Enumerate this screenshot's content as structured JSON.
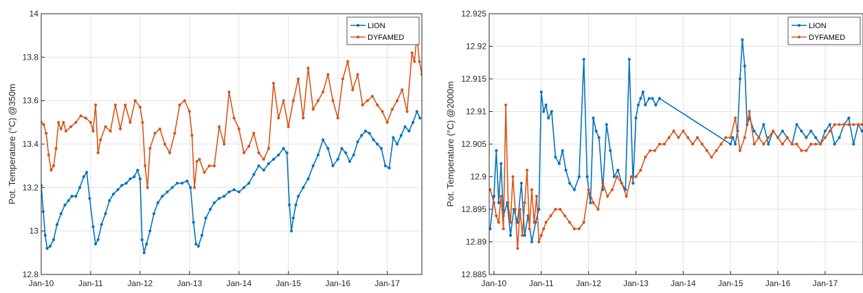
{
  "chart_data": [
    {
      "type": "line",
      "title": "",
      "xlabel": "",
      "ylabel": "Pot. Temperature (°C) @350m",
      "xlim": [
        2010.0,
        2017.7
      ],
      "ylim": [
        12.8,
        14.0
      ],
      "xticks": [
        2010,
        2011,
        2012,
        2013,
        2014,
        2015,
        2016,
        2017
      ],
      "xtick_labels": [
        "Jan-10",
        "Jan-11",
        "Jan-12",
        "Jan-13",
        "Jan-14",
        "Jan-15",
        "Jan-16",
        "Jan-17"
      ],
      "yticks": [
        12.8,
        13.0,
        13.2,
        13.4,
        13.6,
        13.8,
        14.0
      ],
      "ytick_labels": [
        "12.8",
        "13",
        "13.2",
        "13.4",
        "13.6",
        "13.8",
        "14"
      ],
      "grid": true,
      "legend_position": "top-right",
      "series": [
        {
          "name": "LION",
          "color": "#0072BD",
          "x": [
            2010.0,
            2010.04,
            2010.08,
            2010.12,
            2010.18,
            2010.25,
            2010.32,
            2010.4,
            2010.48,
            2010.55,
            2010.62,
            2010.7,
            2010.78,
            2010.86,
            2010.92,
            2010.98,
            2011.05,
            2011.1,
            2011.15,
            2011.22,
            2011.3,
            2011.38,
            2011.46,
            2011.55,
            2011.63,
            2011.72,
            2011.8,
            2011.88,
            2011.95,
            2012.0,
            2012.04,
            2012.08,
            2012.13,
            2012.2,
            2012.28,
            2012.36,
            2012.45,
            2012.55,
            2012.65,
            2012.75,
            2012.85,
            2012.95,
            2013.02,
            2013.08,
            2013.13,
            2013.18,
            2013.25,
            2013.33,
            2013.42,
            2013.5,
            2013.6,
            2013.7,
            2013.8,
            2013.9,
            2014.0,
            2014.1,
            2014.2,
            2014.3,
            2014.4,
            2014.5,
            2014.6,
            2014.7,
            2014.8,
            2014.9,
            2014.97,
            2015.02,
            2015.06,
            2015.1,
            2015.15,
            2015.2,
            2015.3,
            2015.4,
            2015.5,
            2015.6,
            2015.7,
            2015.8,
            2015.9,
            2016.0,
            2016.08,
            2016.16,
            2016.24,
            2016.32,
            2016.4,
            2016.48,
            2016.56,
            2016.64,
            2016.72,
            2016.8,
            2016.88,
            2016.96,
            2017.04,
            2017.12,
            2017.2,
            2017.28,
            2017.36,
            2017.44,
            2017.52,
            2017.6,
            2017.66
          ],
          "y": [
            13.21,
            13.09,
            12.98,
            12.92,
            12.93,
            12.96,
            13.03,
            13.08,
            13.12,
            13.14,
            13.16,
            13.16,
            13.2,
            13.25,
            13.27,
            13.15,
            13.02,
            12.94,
            12.96,
            13.03,
            13.08,
            13.14,
            13.17,
            13.19,
            13.21,
            13.22,
            13.24,
            13.25,
            13.28,
            13.24,
            12.96,
            12.9,
            12.94,
            13.0,
            13.08,
            13.13,
            13.16,
            13.18,
            13.2,
            13.22,
            13.22,
            13.23,
            13.2,
            13.04,
            12.94,
            12.93,
            12.98,
            13.06,
            13.1,
            13.13,
            13.15,
            13.16,
            13.18,
            13.19,
            13.18,
            13.2,
            13.22,
            13.26,
            13.3,
            13.28,
            13.31,
            13.33,
            13.35,
            13.38,
            13.36,
            13.12,
            13.0,
            13.06,
            13.12,
            13.16,
            13.2,
            13.24,
            13.3,
            13.35,
            13.42,
            13.38,
            13.3,
            13.33,
            13.38,
            13.36,
            13.32,
            13.35,
            13.41,
            13.44,
            13.46,
            13.45,
            13.42,
            13.4,
            13.38,
            13.3,
            13.29,
            13.43,
            13.4,
            13.44,
            13.48,
            13.46,
            13.5,
            13.55,
            13.52
          ]
        },
        {
          "name": "DYFAMED",
          "color": "#D95319",
          "x": [
            2010.0,
            2010.05,
            2010.1,
            2010.15,
            2010.2,
            2010.25,
            2010.3,
            2010.35,
            2010.4,
            2010.45,
            2010.5,
            2010.6,
            2010.7,
            2010.8,
            2010.9,
            2011.0,
            2011.05,
            2011.1,
            2011.15,
            2011.2,
            2011.3,
            2011.4,
            2011.5,
            2011.6,
            2011.7,
            2011.8,
            2011.9,
            2012.0,
            2012.05,
            2012.1,
            2012.15,
            2012.2,
            2012.3,
            2012.4,
            2012.5,
            2012.6,
            2012.7,
            2012.8,
            2012.9,
            2013.0,
            2013.05,
            2013.1,
            2013.15,
            2013.2,
            2013.3,
            2013.4,
            2013.5,
            2013.6,
            2013.7,
            2013.8,
            2013.9,
            2014.0,
            2014.1,
            2014.2,
            2014.3,
            2014.4,
            2014.5,
            2014.6,
            2014.7,
            2014.8,
            2014.9,
            2015.0,
            2015.1,
            2015.2,
            2015.3,
            2015.4,
            2015.5,
            2015.6,
            2015.7,
            2015.8,
            2015.9,
            2016.0,
            2016.1,
            2016.2,
            2016.3,
            2016.4,
            2016.5,
            2016.6,
            2016.7,
            2016.8,
            2016.9,
            2017.0,
            2017.1,
            2017.2,
            2017.3,
            2017.4,
            2017.5,
            2017.55,
            2017.6,
            2017.65,
            2017.7
          ],
          "y": [
            13.5,
            13.49,
            13.45,
            13.35,
            13.28,
            13.3,
            13.38,
            13.5,
            13.47,
            13.5,
            13.46,
            13.48,
            13.5,
            13.53,
            13.52,
            13.5,
            13.46,
            13.58,
            13.36,
            13.42,
            13.48,
            13.46,
            13.58,
            13.47,
            13.58,
            13.5,
            13.6,
            13.57,
            13.5,
            13.3,
            13.2,
            13.38,
            13.45,
            13.47,
            13.4,
            13.36,
            13.45,
            13.58,
            13.6,
            13.55,
            13.44,
            13.2,
            13.32,
            13.33,
            13.27,
            13.3,
            13.3,
            13.48,
            13.4,
            13.64,
            13.52,
            13.47,
            13.36,
            13.39,
            13.45,
            13.36,
            13.33,
            13.38,
            13.68,
            13.52,
            13.6,
            13.48,
            13.6,
            13.7,
            13.52,
            13.75,
            13.56,
            13.6,
            13.64,
            13.72,
            13.6,
            13.52,
            13.7,
            13.78,
            13.65,
            13.72,
            13.58,
            13.6,
            13.62,
            13.58,
            13.55,
            13.5,
            13.56,
            13.6,
            13.65,
            13.55,
            13.82,
            13.78,
            13.9,
            13.78,
            13.72
          ]
        }
      ]
    },
    {
      "type": "line",
      "title": "",
      "xlabel": "",
      "ylabel": "Pot. Temperature (°C) @2000m",
      "xlim": [
        2009.9,
        2017.8
      ],
      "ylim": [
        12.885,
        12.925
      ],
      "xticks": [
        2010,
        2011,
        2012,
        2013,
        2014,
        2015,
        2016,
        2017
      ],
      "xtick_labels": [
        "Jan-10",
        "Jan-11",
        "Jan-12",
        "Jan-13",
        "Jan-14",
        "Jan-15",
        "Jan-16",
        "Jan-17"
      ],
      "yticks": [
        12.885,
        12.89,
        12.895,
        12.9,
        12.905,
        12.91,
        12.915,
        12.92,
        12.925
      ],
      "ytick_labels": [
        "12.885",
        "12.89",
        "12.895",
        "12.9",
        "12.905",
        "12.91",
        "12.915",
        "12.92",
        "12.925"
      ],
      "grid": true,
      "legend_position": "top-right",
      "series": [
        {
          "name": "LION",
          "color": "#0072BD",
          "x": [
            2009.92,
            2010.0,
            2010.05,
            2010.1,
            2010.15,
            2010.2,
            2010.28,
            2010.35,
            2010.42,
            2010.5,
            2010.58,
            2010.65,
            2010.72,
            2010.8,
            2010.88,
            2010.95,
            2011.0,
            2011.05,
            2011.1,
            2011.15,
            2011.22,
            2011.3,
            2011.38,
            2011.45,
            2011.52,
            2011.6,
            2011.7,
            2011.8,
            2011.9,
            2011.97,
            2012.04,
            2012.1,
            2012.16,
            2012.22,
            2012.3,
            2012.38,
            2012.46,
            2012.54,
            2012.62,
            2012.7,
            2012.78,
            2012.86,
            2012.94,
            2013.0,
            2013.05,
            2013.1,
            2013.15,
            2013.2,
            2013.28,
            2013.35,
            2013.42,
            2013.5,
            2015.0,
            2015.05,
            2015.1,
            2015.15,
            2015.2,
            2015.25,
            2015.3,
            2015.35,
            2015.4,
            2015.5,
            2015.6,
            2015.7,
            2015.8,
            2015.9,
            2016.0,
            2016.1,
            2016.2,
            2016.3,
            2016.4,
            2016.5,
            2016.6,
            2016.7,
            2016.8,
            2016.9,
            2017.0,
            2017.1,
            2017.2,
            2017.3,
            2017.4,
            2017.5,
            2017.6,
            2017.7,
            2017.78
          ],
          "y": [
            12.892,
            12.897,
            12.904,
            12.896,
            12.902,
            12.894,
            12.896,
            12.891,
            12.895,
            12.893,
            12.899,
            12.891,
            12.894,
            12.89,
            12.893,
            12.895,
            12.913,
            12.91,
            12.911,
            12.909,
            12.91,
            12.903,
            12.902,
            12.904,
            12.901,
            12.899,
            12.898,
            12.9,
            12.918,
            12.9,
            12.896,
            12.909,
            12.907,
            12.906,
            12.898,
            12.908,
            12.904,
            12.9,
            12.901,
            12.899,
            12.898,
            12.918,
            12.899,
            12.909,
            12.911,
            12.912,
            12.913,
            12.911,
            12.912,
            12.912,
            12.911,
            12.912,
            12.905,
            12.906,
            12.905,
            12.907,
            12.915,
            12.921,
            12.917,
            12.908,
            12.909,
            12.907,
            12.906,
            12.908,
            12.905,
            12.907,
            12.906,
            12.907,
            12.906,
            12.905,
            12.908,
            12.907,
            12.906,
            12.907,
            12.906,
            12.905,
            12.907,
            12.908,
            12.905,
            12.906,
            12.908,
            12.909,
            12.905,
            12.908,
            12.907
          ]
        },
        {
          "name": "DYFAMED",
          "color": "#D95319",
          "x": [
            2009.92,
            2010.0,
            2010.05,
            2010.1,
            2010.15,
            2010.2,
            2010.25,
            2010.3,
            2010.35,
            2010.4,
            2010.45,
            2010.5,
            2010.55,
            2010.6,
            2010.65,
            2010.7,
            2010.75,
            2010.8,
            2010.85,
            2010.9,
            2010.95,
            2011.0,
            2011.05,
            2011.1,
            2011.2,
            2011.3,
            2011.4,
            2011.5,
            2011.6,
            2011.7,
            2011.8,
            2011.9,
            2012.0,
            2012.1,
            2012.2,
            2012.3,
            2012.4,
            2012.5,
            2012.6,
            2012.7,
            2012.8,
            2012.9,
            2013.0,
            2013.1,
            2013.2,
            2013.3,
            2013.4,
            2013.5,
            2013.6,
            2013.7,
            2013.8,
            2013.9,
            2014.0,
            2014.1,
            2014.2,
            2014.3,
            2014.4,
            2014.5,
            2014.6,
            2014.7,
            2014.8,
            2014.9,
            2015.0,
            2015.1,
            2015.2,
            2015.3,
            2015.4,
            2015.5,
            2015.6,
            2015.7,
            2015.8,
            2015.9,
            2016.0,
            2016.1,
            2016.2,
            2016.3,
            2016.4,
            2016.5,
            2016.6,
            2016.7,
            2016.8,
            2016.9,
            2017.0,
            2017.1,
            2017.2,
            2017.3,
            2017.4,
            2017.5,
            2017.6,
            2017.7,
            2017.78
          ],
          "y": [
            12.898,
            12.896,
            12.894,
            12.893,
            12.897,
            12.892,
            12.911,
            12.896,
            12.893,
            12.9,
            12.895,
            12.889,
            12.895,
            12.891,
            12.896,
            12.901,
            12.892,
            12.898,
            12.893,
            12.897,
            12.89,
            12.891,
            12.892,
            12.893,
            12.894,
            12.895,
            12.895,
            12.894,
            12.893,
            12.892,
            12.892,
            12.893,
            12.898,
            12.896,
            12.895,
            12.899,
            12.897,
            12.898,
            12.9,
            12.899,
            12.897,
            12.9,
            12.9,
            12.901,
            12.903,
            12.904,
            12.904,
            12.905,
            12.905,
            12.906,
            12.907,
            12.906,
            12.907,
            12.906,
            12.905,
            12.906,
            12.905,
            12.904,
            12.903,
            12.904,
            12.905,
            12.906,
            12.906,
            12.909,
            12.904,
            12.906,
            12.91,
            12.905,
            12.906,
            12.905,
            12.906,
            12.907,
            12.906,
            12.905,
            12.906,
            12.905,
            12.905,
            12.904,
            12.904,
            12.905,
            12.905,
            12.905,
            12.906,
            12.907,
            12.908,
            12.908,
            12.908,
            12.908,
            12.908,
            12.908,
            12.908
          ]
        }
      ]
    }
  ]
}
